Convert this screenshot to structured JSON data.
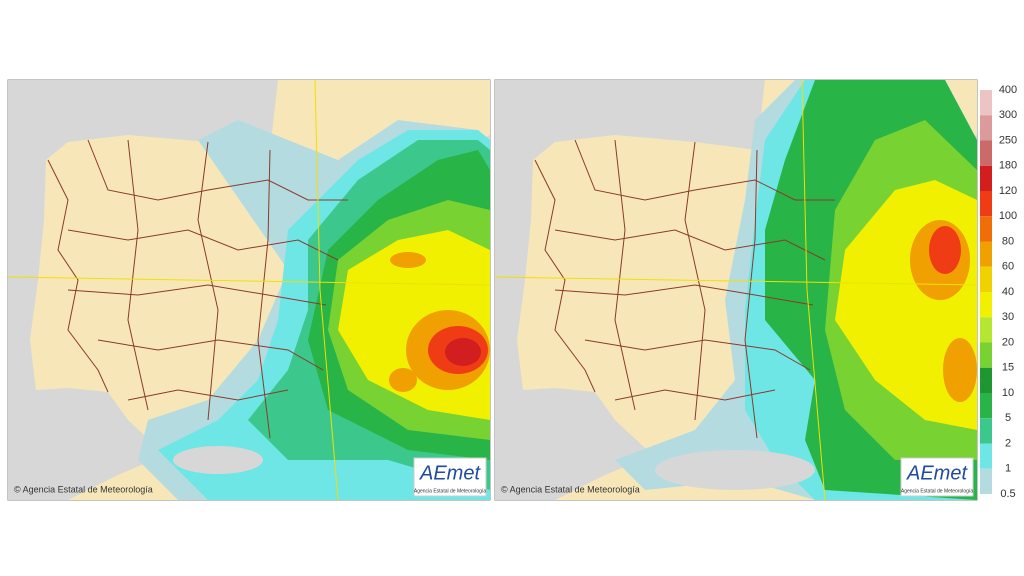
{
  "panels": [
    {
      "copyright": "© Agencia Estatal de Meteorología",
      "logo": "AEmet",
      "logo_subtitle": "Agencia Estatal de Meteorología"
    },
    {
      "copyright": "© Agencia Estatal de Meteorología",
      "logo": "AEmet",
      "logo_subtitle": "Agencia Estatal de Meteorología"
    }
  ],
  "legend": {
    "labels": [
      400,
      300,
      250,
      180,
      120,
      100,
      80,
      60,
      40,
      30,
      20,
      15,
      10,
      5,
      2,
      1,
      0.5
    ],
    "colors": [
      "#ecc4c4",
      "#dc9a9a",
      "#cc6a6a",
      "#d21e1e",
      "#f03c14",
      "#f06e0a",
      "#f0a000",
      "#f0d200",
      "#f0f000",
      "#b4e632",
      "#78d232",
      "#1e9632",
      "#28b446",
      "#3cc88c",
      "#6ee6e6",
      "#b4dce0"
    ]
  }
}
